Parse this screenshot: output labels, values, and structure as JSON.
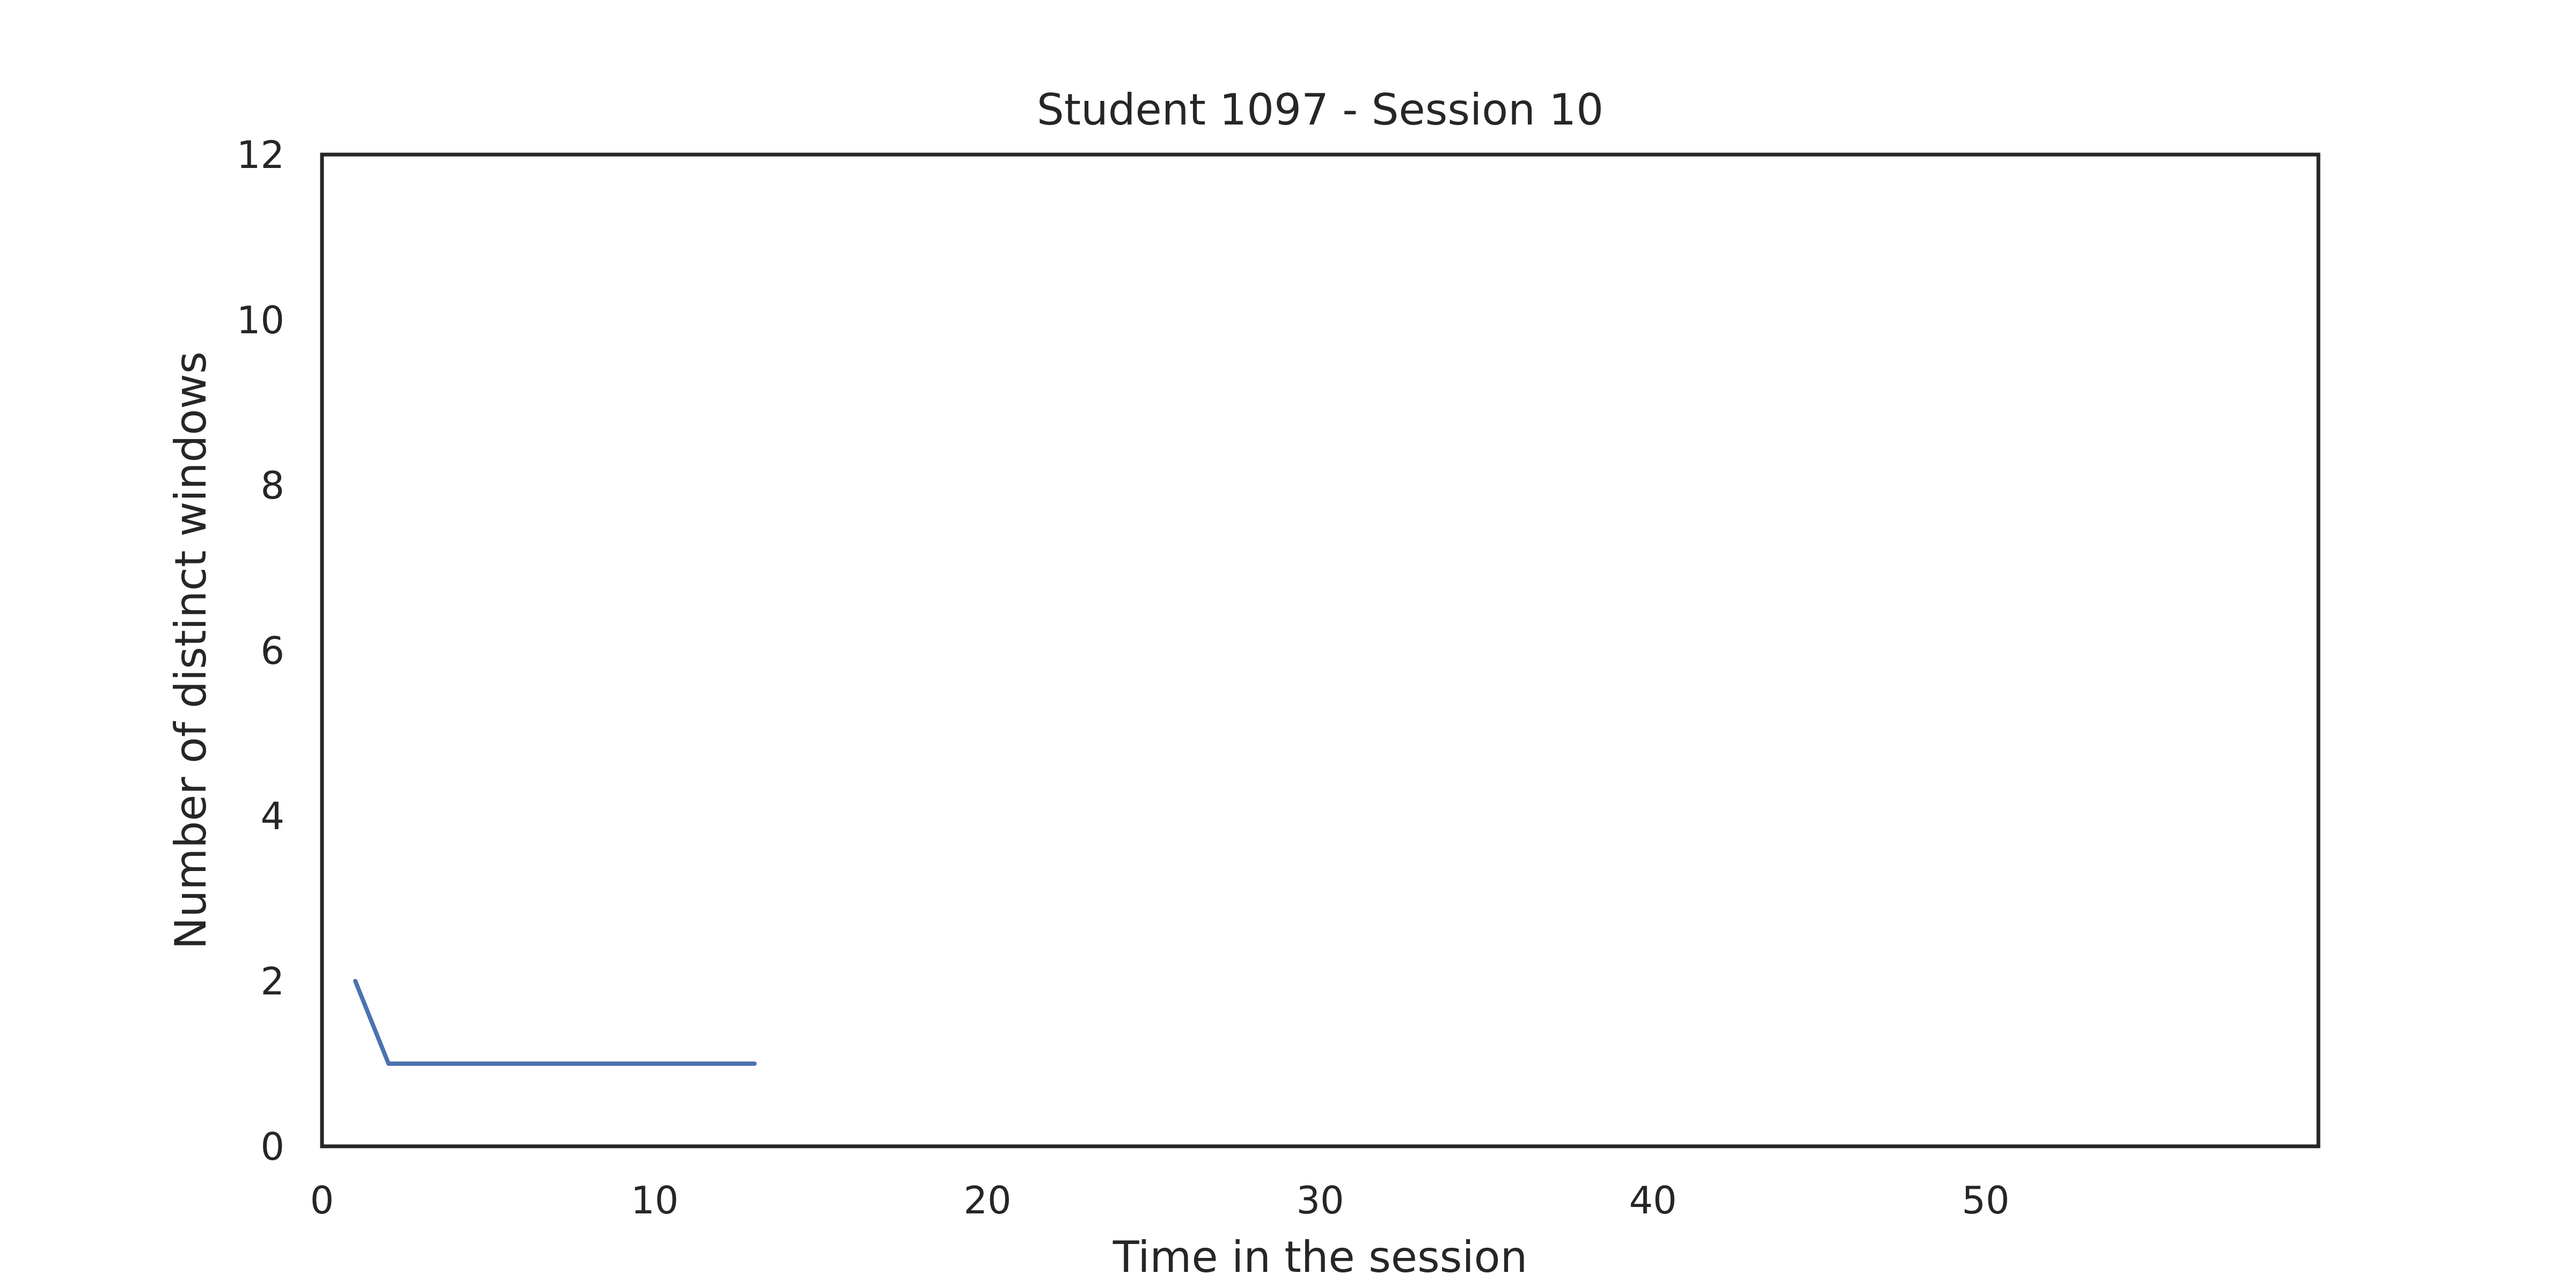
{
  "chart_data": {
    "type": "line",
    "title": "Student 1097 - Session 10",
    "xlabel": "Time in the session",
    "ylabel": "Number of distinct windows",
    "xlim": [
      0,
      60
    ],
    "ylim": [
      0,
      12
    ],
    "xticks": [
      0,
      10,
      20,
      30,
      40,
      50
    ],
    "yticks": [
      0,
      2,
      4,
      6,
      8,
      10,
      12
    ],
    "grid": false,
    "legend": "none",
    "series": [
      {
        "color": "#4c72b0",
        "x": [
          1,
          2,
          3,
          4,
          5,
          6,
          7,
          8,
          9,
          10,
          11,
          12,
          13
        ],
        "y": [
          2,
          1,
          1,
          1,
          1,
          1,
          1,
          1,
          1,
          1,
          1,
          1,
          1
        ]
      }
    ]
  }
}
